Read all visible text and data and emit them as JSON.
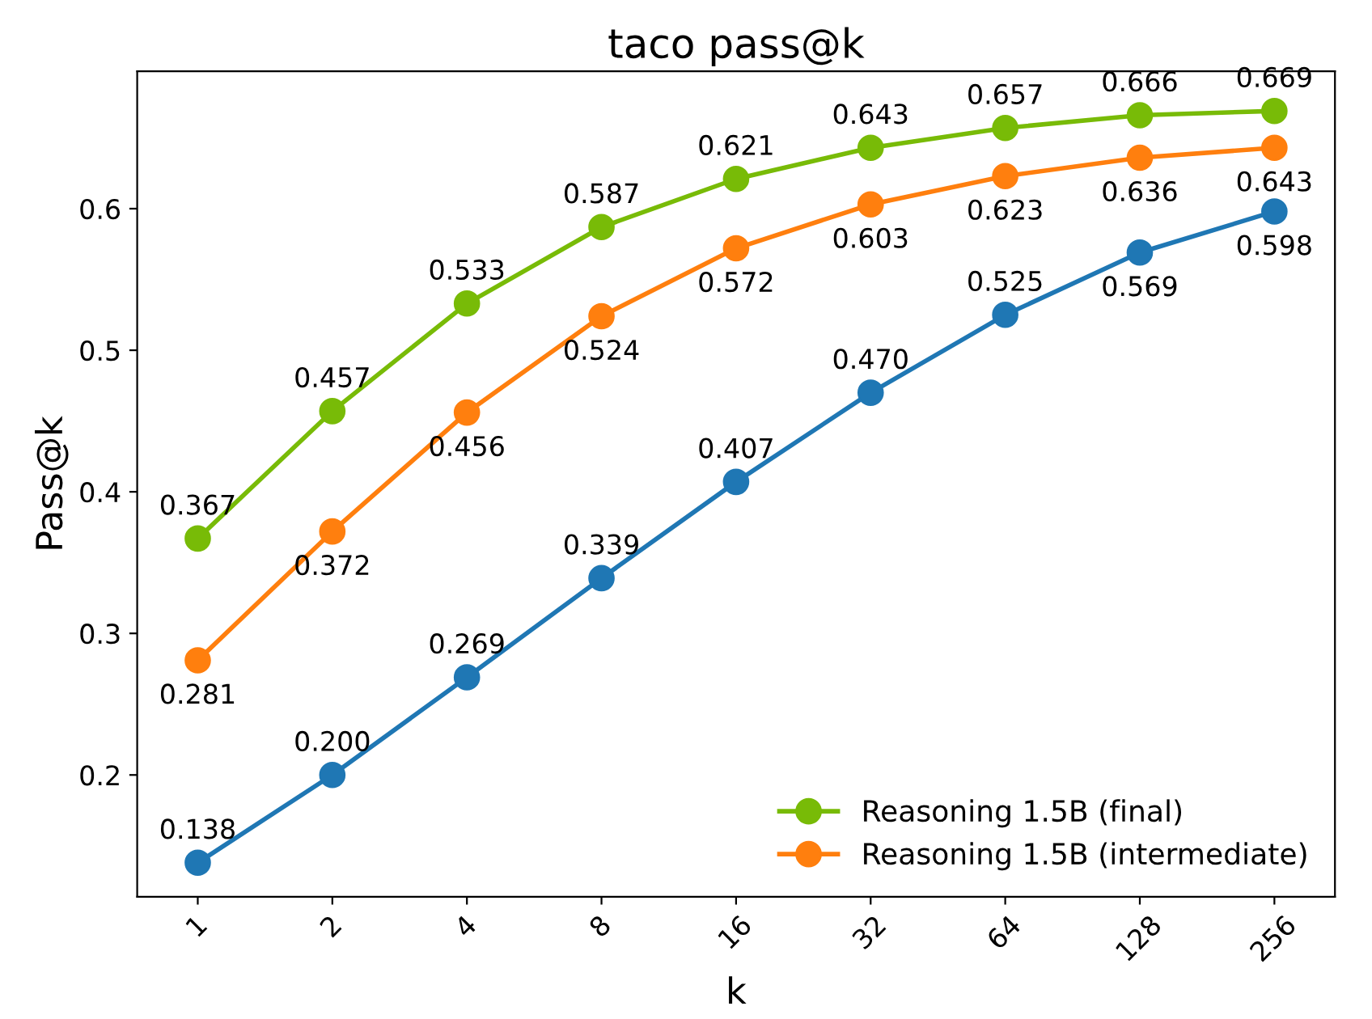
{
  "chart_data": {
    "type": "line",
    "title": "taco pass@k",
    "xlabel": "k",
    "ylabel": "Pass@k",
    "categories": [
      "1",
      "2",
      "4",
      "8",
      "16",
      "32",
      "64",
      "128",
      "256"
    ],
    "series": [
      {
        "name": "Reasoning 1.5B (final)",
        "color": "#78bb07",
        "values": [
          0.367,
          0.457,
          0.533,
          0.587,
          0.621,
          0.643,
          0.657,
          0.666,
          0.669
        ],
        "value_labels": [
          "0.367",
          "0.457",
          "0.533",
          "0.587",
          "0.621",
          "0.643",
          "0.657",
          "0.666",
          "0.669"
        ]
      },
      {
        "name": "Reasoning 1.5B (intermediate)",
        "color": "#ff7f0e",
        "values": [
          0.281,
          0.372,
          0.456,
          0.524,
          0.572,
          0.603,
          0.623,
          0.636,
          0.643
        ],
        "value_labels": [
          "0.281",
          "0.372",
          "0.456",
          "0.524",
          "0.572",
          "0.603",
          "0.623",
          "0.636",
          "0.643"
        ]
      },
      {
        "color": "#1f77b4",
        "values": [
          0.138,
          0.2,
          0.269,
          0.339,
          0.407,
          0.47,
          0.525,
          0.569,
          0.598
        ],
        "value_labels": [
          "0.138",
          "0.200",
          "0.269",
          "0.339",
          "0.407",
          "0.470",
          "0.525",
          "0.569",
          "0.598"
        ]
      }
    ],
    "ylim": [
      0.114,
      0.697
    ],
    "yticks": [
      0.2,
      0.3,
      0.4,
      0.5,
      0.6
    ],
    "legend": "bottom right",
    "marker": "circle",
    "line_style": "solid",
    "grid": false
  }
}
